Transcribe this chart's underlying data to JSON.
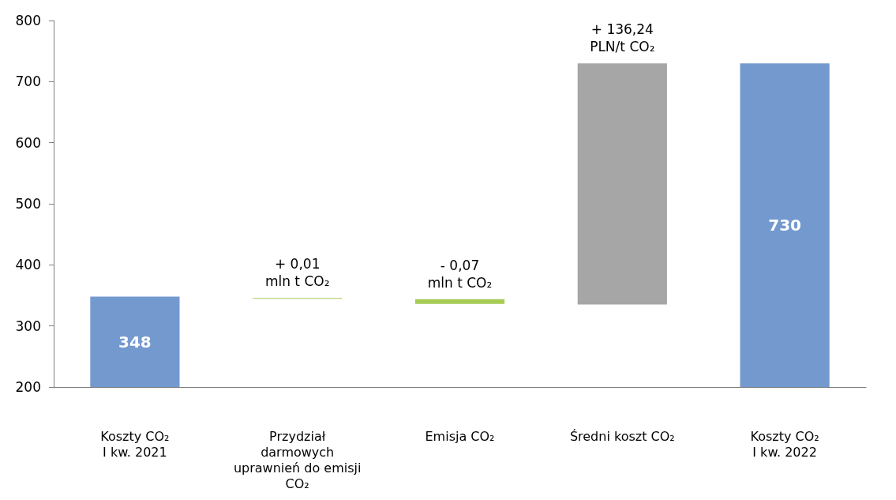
{
  "chart_data": {
    "type": "bar",
    "categories": [
      "Koszty CO₂\nI kw. 2021",
      "Przydział\ndarmowych\nuprawnień do emisji\nCO₂",
      "Emisja CO₂",
      "Średni koszt CO₂",
      "Koszty CO₂\nI kw. 2022"
    ],
    "values": [
      348,
      1,
      8,
      395,
      730
    ],
    "base": [
      null,
      344.5,
      336,
      335,
      null
    ],
    "colors": [
      "#7399cf",
      "#a6cc55",
      "#a6cc55",
      "#a6a6a6",
      "#7399cf"
    ],
    "value_labels": [
      "348",
      null,
      null,
      null,
      "730"
    ],
    "ylim": [
      200,
      800
    ],
    "yticks": [
      200,
      300,
      400,
      500,
      600,
      700,
      800
    ],
    "grid": false,
    "annotations": [
      {
        "text": "+ 0,01\nmln t CO₂",
        "x": "Przydział\ndarmowych\nuprawnień do emisji\nCO₂",
        "y": 345.5
      },
      {
        "text": "- 0,07\nmln t CO₂",
        "x": "Emisja CO₂",
        "y": 344
      },
      {
        "text": "+ 136,24\nPLN/t CO₂",
        "x": "Średni koszt CO₂",
        "y": 730
      }
    ]
  }
}
